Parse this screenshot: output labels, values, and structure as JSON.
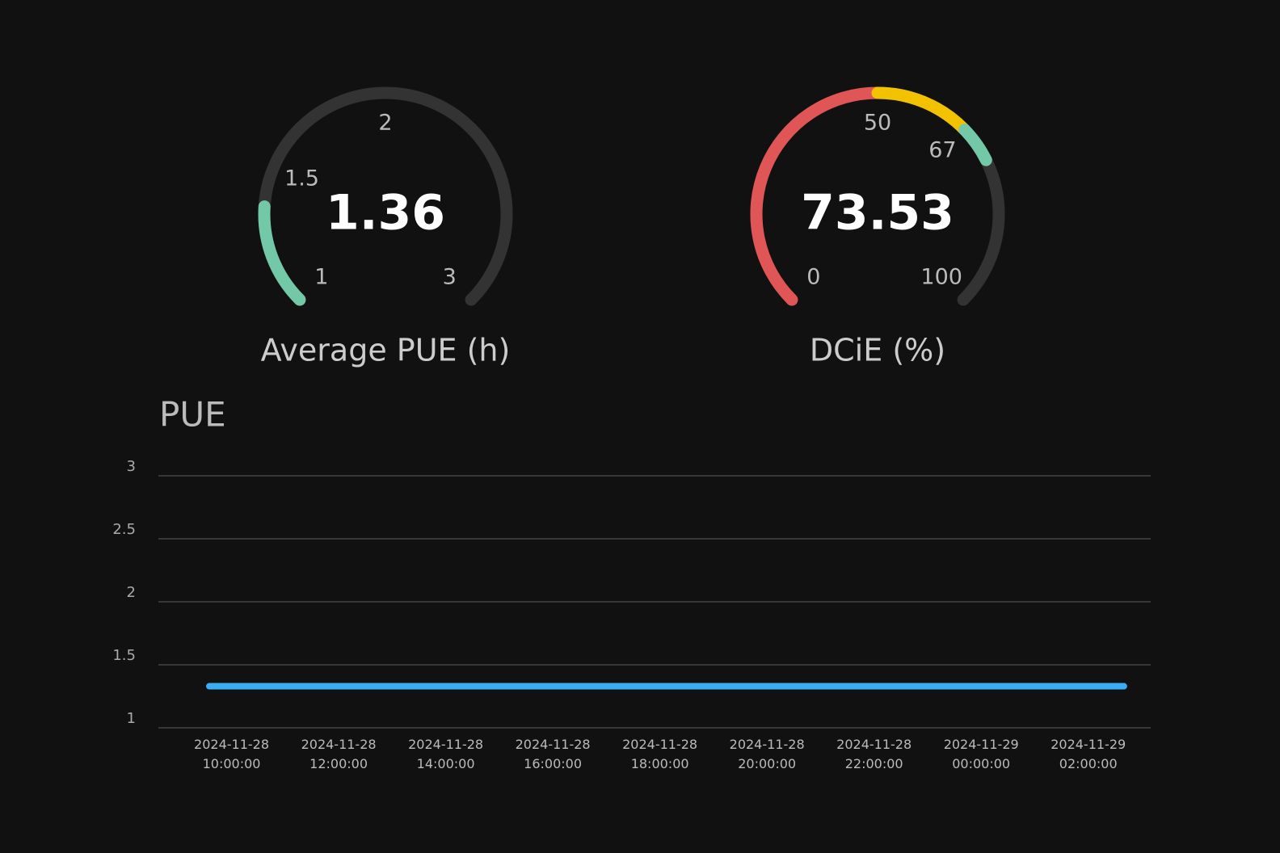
{
  "chart_data": [
    {
      "type": "gauge",
      "title": "Average PUE (h)",
      "min": 1,
      "max": 3,
      "value": 1.36,
      "ticks": [
        1,
        1.5,
        2,
        3
      ],
      "track_color": "#333333",
      "bands": [
        {
          "to": 3,
          "color": "#73c9a7"
        }
      ]
    },
    {
      "type": "gauge",
      "title": "DCiE (%)",
      "min": 0,
      "max": 100,
      "value": 73.53,
      "ticks": [
        0,
        50,
        67,
        100
      ],
      "track_color": "#333333",
      "bands": [
        {
          "to": 50,
          "color": "#e05555"
        },
        {
          "to": 67,
          "color": "#f2c200"
        },
        {
          "to": 100,
          "color": "#73c9a7"
        }
      ]
    },
    {
      "type": "line",
      "title": "PUE",
      "x": [
        "2024-11-28 09:35:00",
        "2024-11-29 02:40:00"
      ],
      "series": [
        {
          "name": "PUE",
          "color": "#3aaef5",
          "values": [
            1.33,
            1.33
          ]
        }
      ],
      "xlim": [
        "2024-11-28 08:38:00",
        "2024-11-29 03:10:00"
      ],
      "xticks": [
        "2024-11-28 10:00:00",
        "2024-11-28 12:00:00",
        "2024-11-28 14:00:00",
        "2024-11-28 16:00:00",
        "2024-11-28 18:00:00",
        "2024-11-28 20:00:00",
        "2024-11-28 22:00:00",
        "2024-11-29 00:00:00",
        "2024-11-29 02:00:00"
      ],
      "ylim": [
        1,
        3
      ],
      "yticks": [
        1,
        1.5,
        2,
        2.5,
        3
      ],
      "grid": true
    }
  ]
}
